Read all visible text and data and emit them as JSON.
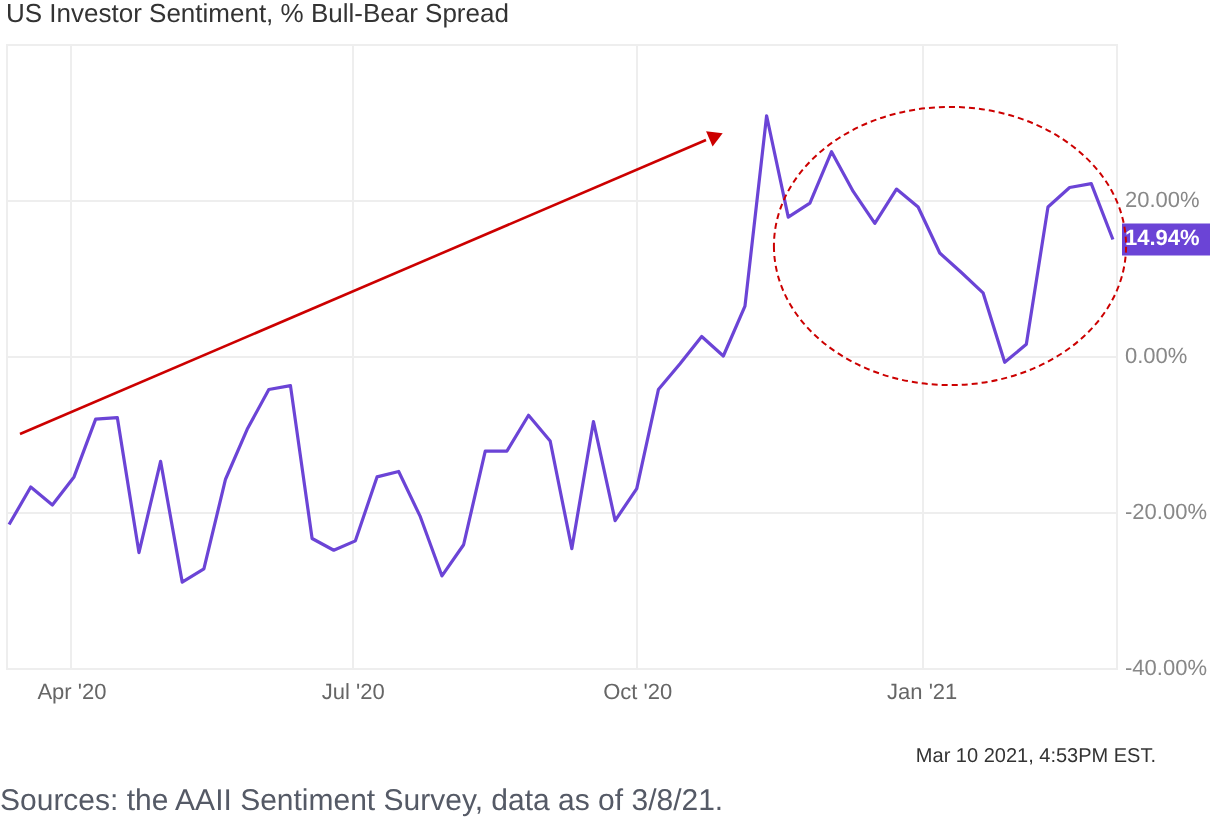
{
  "chart_data": {
    "type": "line",
    "title": "US Investor Sentiment, % Bull-Bear Spread",
    "x": [
      "2020-03-12",
      "2020-03-19",
      "2020-03-26",
      "2020-04-02",
      "2020-04-09",
      "2020-04-16",
      "2020-04-23",
      "2020-04-30",
      "2020-05-07",
      "2020-05-14",
      "2020-05-21",
      "2020-05-28",
      "2020-06-04",
      "2020-06-11",
      "2020-06-18",
      "2020-06-25",
      "2020-07-02",
      "2020-07-09",
      "2020-07-16",
      "2020-07-23",
      "2020-07-30",
      "2020-08-06",
      "2020-08-13",
      "2020-08-20",
      "2020-08-27",
      "2020-09-03",
      "2020-09-10",
      "2020-09-17",
      "2020-09-24",
      "2020-10-01",
      "2020-10-08",
      "2020-10-15",
      "2020-10-22",
      "2020-10-29",
      "2020-11-05",
      "2020-11-12",
      "2020-11-19",
      "2020-11-26",
      "2020-12-03",
      "2020-12-10",
      "2020-12-17",
      "2020-12-24",
      "2020-12-31",
      "2021-01-07",
      "2021-01-14",
      "2021-01-21",
      "2021-01-28",
      "2021-02-04",
      "2021-02-11",
      "2021-02-18",
      "2021-02-25",
      "2021-03-04"
    ],
    "series": [
      {
        "color": "#6b44d6",
        "values": [
          -21.6,
          -16.8,
          -19.1,
          -15.5,
          -8.1,
          -7.9,
          -25.2,
          -13.5,
          -29.0,
          -27.3,
          -15.8,
          -9.4,
          -4.3,
          -3.8,
          -23.4,
          -24.9,
          -23.7,
          -15.5,
          -14.8,
          -20.6,
          -28.2,
          -24.2,
          -12.2,
          -12.2,
          -7.6,
          -10.9,
          -24.7,
          -8.4,
          -21.1,
          -17.0,
          -4.3,
          -1.0,
          2.5,
          0.0,
          6.4,
          30.8,
          17.8,
          19.6,
          26.2,
          21.1,
          17.0,
          21.4,
          19.1,
          13.2,
          10.7,
          8.1,
          -0.8,
          1.5,
          19.1,
          21.6,
          22.1,
          14.94
        ]
      }
    ],
    "xlim": [
      "2020-03-11",
      "2021-03-05"
    ],
    "xticks": [
      {
        "value": "2020-04-01",
        "label": "Apr '20"
      },
      {
        "value": "2020-07-01",
        "label": "Jul '20"
      },
      {
        "value": "2020-10-01",
        "label": "Oct '20"
      },
      {
        "value": "2021-01-01",
        "label": "Jan '21"
      }
    ],
    "ylim": [
      -40,
      40
    ],
    "yticks": [
      {
        "value": -40,
        "label": "-40.00%"
      },
      {
        "value": -20,
        "label": "-20.00%"
      },
      {
        "value": 0,
        "label": "0.00%"
      },
      {
        "value": 20,
        "label": "20.00%"
      }
    ],
    "grid": true,
    "legend": false,
    "marker": "none",
    "line_style": "solid",
    "annotations": [
      {
        "text": "14.94%",
        "x": "2021-03-04",
        "y": 14.94
      },
      "Mar 10 2021, 4:53PM EST.",
      "Sources: the AAII Sentiment Survey, data as of 3/8/21."
    ]
  }
}
